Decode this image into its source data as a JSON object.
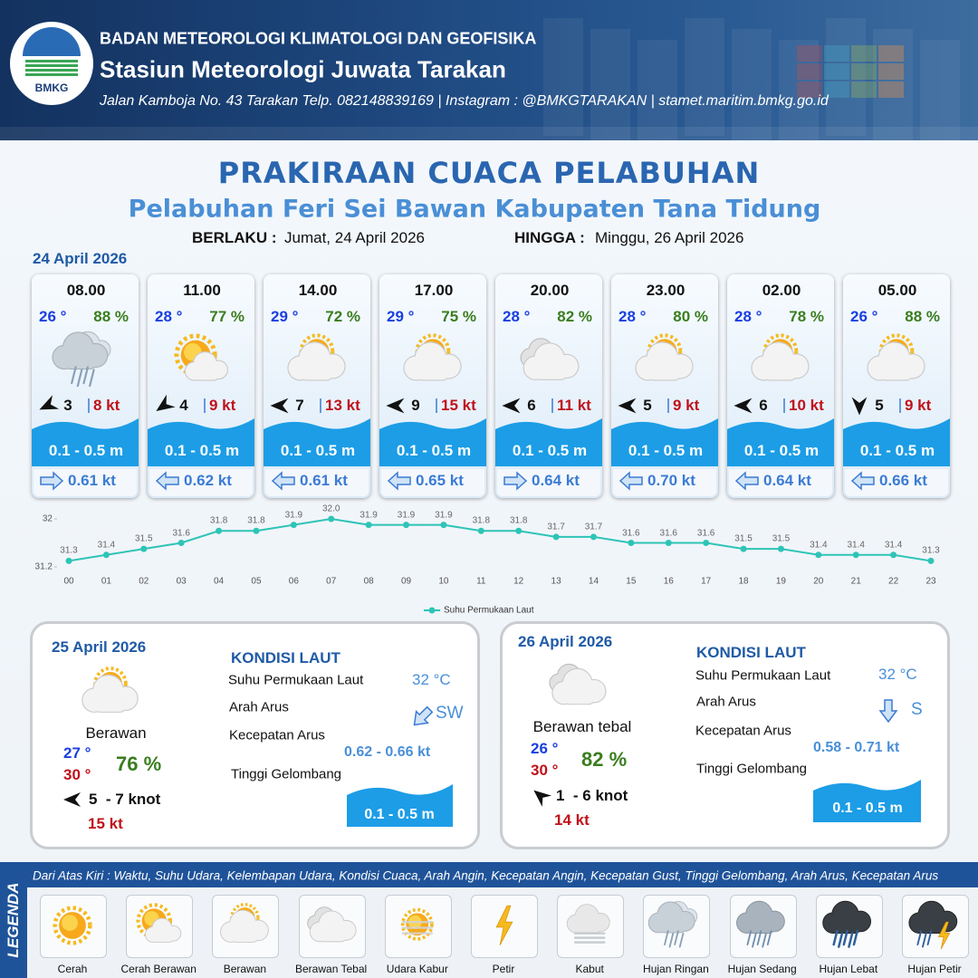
{
  "header": {
    "logo": "BMKG",
    "org": "BADAN METEOROLOGI KLIMATOLOGI DAN GEOFISIKA",
    "station": "Stasiun Meteorologi Juwata Tarakan",
    "address": "Jalan Kamboja No. 43 Tarakan  Telp. 082148839169 | Instagram : @BMKGTARAKAN | stamet.maritim.bmkg.go.id"
  },
  "title": "PRAKIRAAN CUACA PELABUHAN",
  "subtitle": "Pelabuhan Feri Sei Bawan Kabupaten Tana Tidung",
  "validity": {
    "from_label": "BERLAKU :",
    "from": "Jumat, 24 April 2026",
    "to_label": "HINGGA :",
    "to": "Minggu, 26 April 2026"
  },
  "day1": {
    "date": "24 April 2026",
    "forecasts": [
      {
        "time": "08.00",
        "temp": "26 °",
        "humidity": "88 %",
        "icon": "Hujan Ringan",
        "wind": "3",
        "gust": "8 kt",
        "wave": "0.1 - 0.5 m",
        "current": "0.61 kt"
      },
      {
        "time": "11.00",
        "temp": "28 °",
        "humidity": "77 %",
        "icon": "Cerah Berawan",
        "wind": "4",
        "gust": "9 kt",
        "wave": "0.1 - 0.5 m",
        "current": "0.62 kt"
      },
      {
        "time": "14.00",
        "temp": "29 °",
        "humidity": "72 %",
        "icon": "Berawan",
        "wind": "7",
        "gust": "13 kt",
        "wave": "0.1 - 0.5 m",
        "current": "0.61 kt"
      },
      {
        "time": "17.00",
        "temp": "29 °",
        "humidity": "75 %",
        "icon": "Berawan",
        "wind": "9",
        "gust": "15 kt",
        "wave": "0.1 - 0.5 m",
        "current": "0.65 kt"
      },
      {
        "time": "20.00",
        "temp": "28 °",
        "humidity": "82 %",
        "icon": "Berawan Tebal",
        "wind": "6",
        "gust": "11 kt",
        "wave": "0.1 - 0.5 m",
        "current": "0.64 kt"
      },
      {
        "time": "23.00",
        "temp": "28 °",
        "humidity": "80 %",
        "icon": "Berawan",
        "wind": "5",
        "gust": "9 kt",
        "wave": "0.1 - 0.5 m",
        "current": "0.70 kt"
      },
      {
        "time": "02.00",
        "temp": "28 °",
        "humidity": "78 %",
        "icon": "Berawan",
        "wind": "6",
        "gust": "10 kt",
        "wave": "0.1 - 0.5 m",
        "current": "0.64 kt"
      },
      {
        "time": "05.00",
        "temp": "26 °",
        "humidity": "88 %",
        "icon": "Berawan",
        "wind": "5",
        "gust": "9 kt",
        "wave": "0.1 - 0.5 m",
        "current": "0.66 kt"
      }
    ]
  },
  "chart_data": {
    "type": "line",
    "categories": [
      "00",
      "01",
      "02",
      "03",
      "04",
      "05",
      "06",
      "07",
      "08",
      "09",
      "10",
      "11",
      "12",
      "13",
      "14",
      "15",
      "16",
      "17",
      "18",
      "19",
      "20",
      "21",
      "22",
      "23"
    ],
    "series": [
      {
        "name": "Suhu Permukaan Laut",
        "color": "#2ec4b6",
        "values": [
          31.3,
          31.4,
          31.5,
          31.6,
          31.8,
          31.8,
          31.9,
          32.0,
          31.9,
          31.9,
          31.9,
          31.8,
          31.8,
          31.7,
          31.7,
          31.6,
          31.6,
          31.6,
          31.5,
          31.5,
          31.4,
          31.4,
          31.4,
          31.3
        ],
        "value_labels": [
          "31.3",
          "31.4",
          "31.5",
          "31.6",
          "31.8",
          "31.8",
          "31.9",
          "32.0",
          "31.9",
          "31.9",
          "31.9",
          "31.8",
          "31.8",
          "31.7",
          "31.7",
          "31.6",
          "31.6",
          "31.6",
          "31.5",
          "31.5",
          "31.4",
          "31.4",
          "31.4",
          "31.3"
        ]
      }
    ],
    "ylim": [
      31.2,
      32
    ],
    "yticks": [
      31.2,
      32
    ],
    "grid": false,
    "legend": "bottom"
  },
  "days": [
    {
      "date": "25 April 2026",
      "icon": "Berawan",
      "condition": "Berawan",
      "temp_a": "27 °",
      "temp_b": "30 °",
      "humidity": "76 %",
      "wind": "5  - 7 knot",
      "gust": "15 kt",
      "sea": {
        "heading": "KONDISI LAUT",
        "sst_label": "Suhu Permukaan Laut",
        "sst": "32 °C",
        "dir_label": "Arah Arus",
        "dir": "SW",
        "speed_label": "Kecepatan Arus",
        "speed": "0.62 - 0.66 kt",
        "wave_label": "Tinggi Gelombang",
        "wave": "0.1 - 0.5 m"
      }
    },
    {
      "date": "26 April 2026",
      "icon": "Berawan Tebal",
      "condition": "Berawan tebal",
      "temp_a": "26 °",
      "temp_b": "30 °",
      "humidity": "82 %",
      "wind": "1  - 6 knot",
      "gust": "14 kt",
      "sea": {
        "heading": "KONDISI LAUT",
        "sst_label": "Suhu Permukaan Laut",
        "sst": "32 °C",
        "dir_label": "Arah Arus",
        "dir": "S",
        "speed_label": "Kecepatan Arus",
        "speed": "0.58 - 0.71 kt",
        "wave_label": "Tinggi Gelombang",
        "wave": "0.1 - 0.5 m"
      }
    }
  ],
  "legend": {
    "title": "LEGENDA",
    "description": "Dari Atas Kiri : Waktu, Suhu Udara, Kelembapan Udara, Kondisi Cuaca, Arah Angin, Kecepatan Angin, Kecepatan Gust, Tinggi Gelombang, Arah Arus, Kecepatan Arus",
    "items": [
      "Cerah",
      "Cerah Berawan",
      "Berawan",
      "Berawan Tebal",
      "Udara Kabur",
      "Petir",
      "Kabut",
      "Hujan Ringan",
      "Hujan Sedang",
      "Hujan Lebat",
      "Hujan Petir"
    ]
  }
}
